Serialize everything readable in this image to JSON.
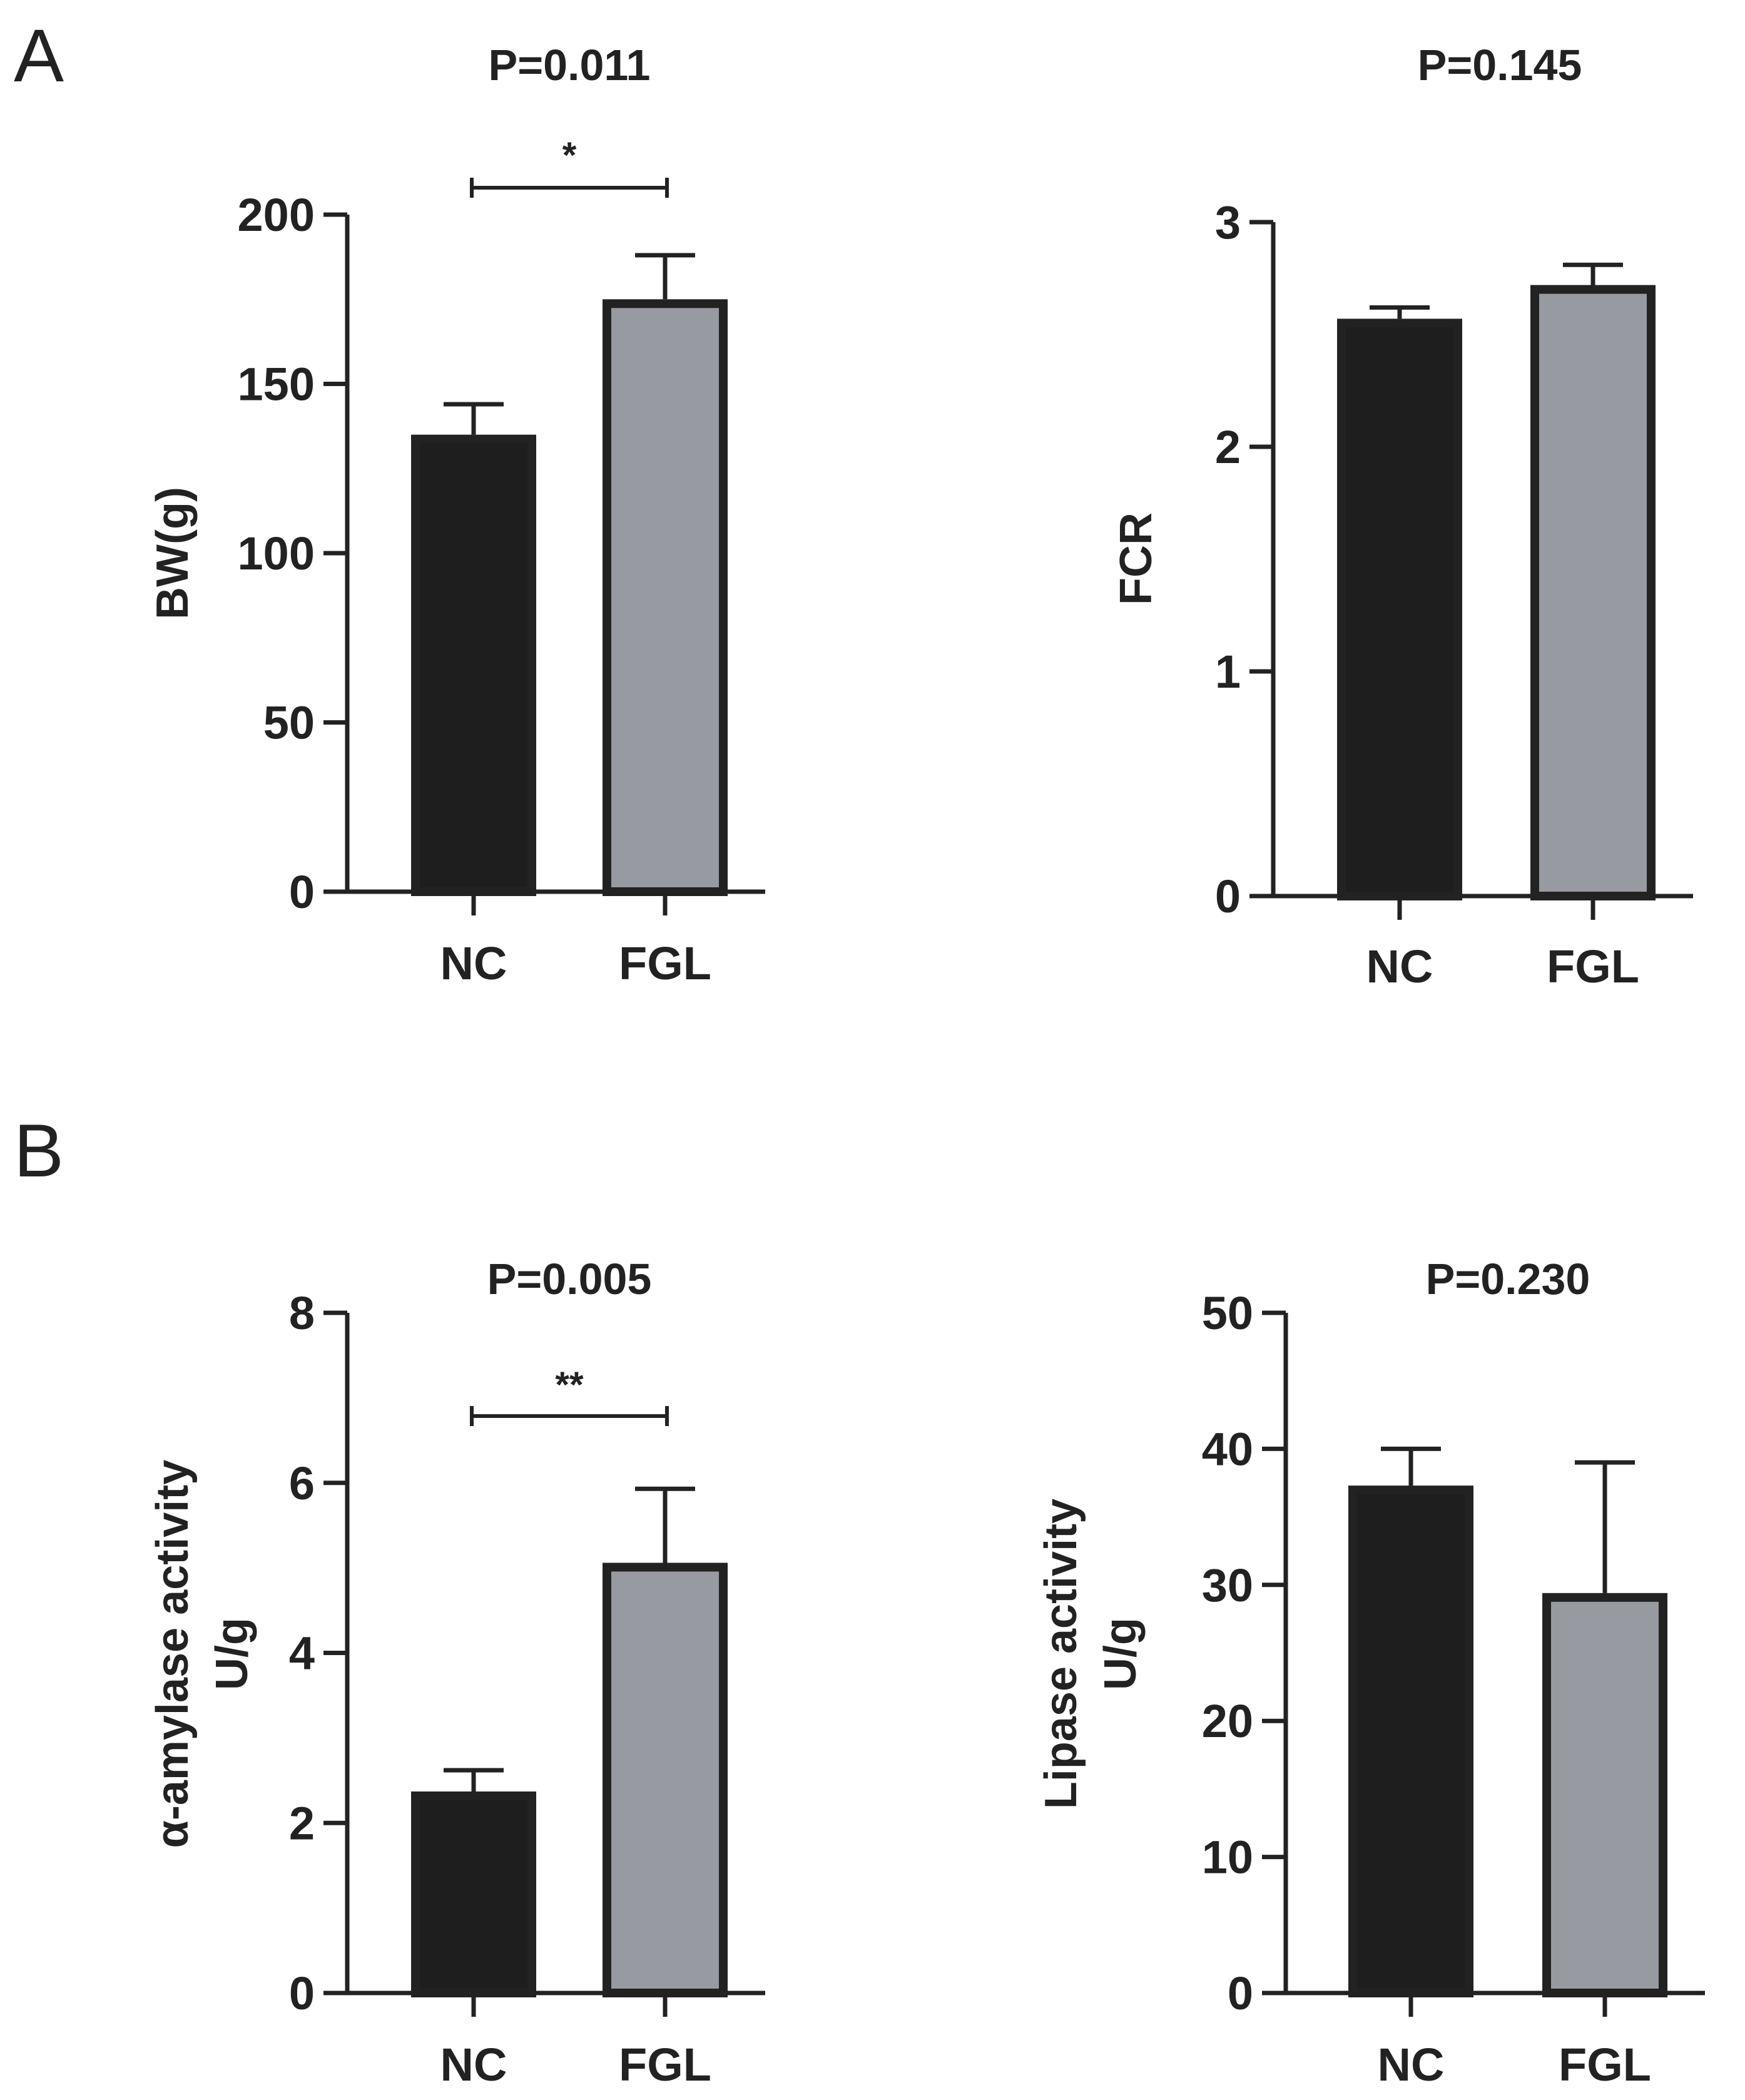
{
  "panels": [
    {
      "letter": "A"
    },
    {
      "letter": "B"
    }
  ],
  "chart_data": [
    {
      "type": "bar",
      "panel": "A",
      "title": "P=0.011",
      "ylabel": "BW(g)",
      "ylabel_line2": "",
      "categories": [
        "NC",
        "FGL"
      ],
      "values": [
        135,
        175
      ],
      "errors": [
        9,
        13
      ],
      "colors": [
        "#1e1e1e",
        "#979aa1"
      ],
      "ylim": [
        0,
        200
      ],
      "yticks": [
        0,
        50,
        100,
        150,
        200
      ],
      "significance": "*"
    },
    {
      "type": "bar",
      "panel": "A",
      "title": "P=0.145",
      "ylabel": "FCR",
      "ylabel_line2": "",
      "categories": [
        "NC",
        "FGL"
      ],
      "values": [
        2.57,
        2.72
      ],
      "errors": [
        0.05,
        0.09
      ],
      "colors": [
        "#1e1e1e",
        "#979aa1"
      ],
      "ylim": [
        0,
        3
      ],
      "yticks": [
        0,
        1,
        2,
        3
      ],
      "significance": ""
    },
    {
      "type": "bar",
      "panel": "B",
      "title": "P=0.005",
      "ylabel": "α-amylase activity",
      "ylabel_line2": "U/g",
      "categories": [
        "NC",
        "FGL"
      ],
      "values": [
        2.37,
        5.06
      ],
      "errors": [
        0.25,
        0.87
      ],
      "colors": [
        "#1e1e1e",
        "#979aa1"
      ],
      "ylim": [
        0,
        8
      ],
      "yticks": [
        0,
        2,
        4,
        6,
        8
      ],
      "significance": "**"
    },
    {
      "type": "bar",
      "panel": "B",
      "title": "P=0.230",
      "ylabel": "Lipase activity",
      "ylabel_line2": "U/g",
      "categories": [
        "NC",
        "FGL"
      ],
      "values": [
        37.3,
        29.4
      ],
      "errors": [
        2.7,
        9.6
      ],
      "colors": [
        "#1e1e1e",
        "#979aa1"
      ],
      "ylim": [
        0,
        50
      ],
      "yticks": [
        0,
        10,
        20,
        30,
        40,
        50
      ],
      "significance": ""
    }
  ]
}
